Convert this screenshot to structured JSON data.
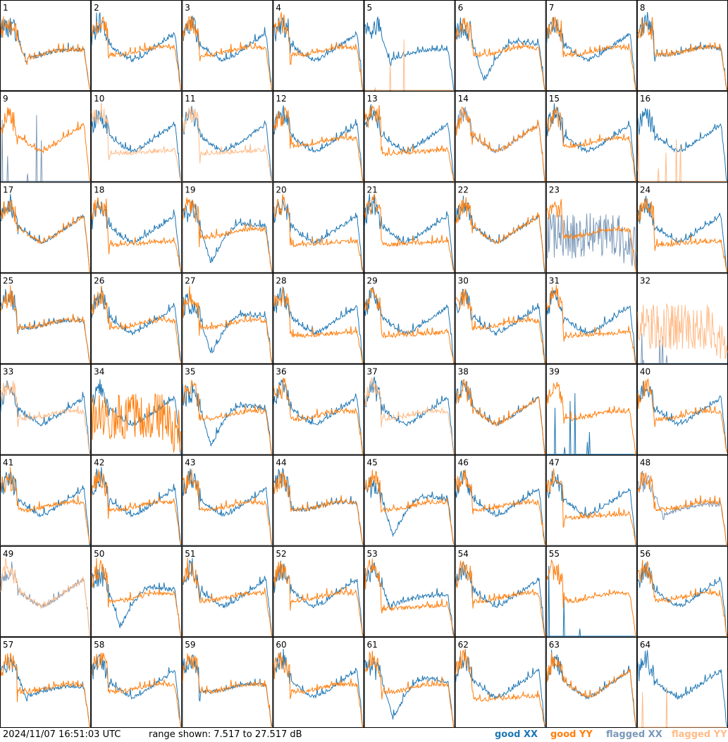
{
  "footer": {
    "timestamp": "2024/11/07 16:51:03 UTC",
    "range_text": "range shown: 7.517 to 27.517 dB",
    "legend": {
      "good_xx": "good XX",
      "good_yy": "good YY",
      "flagged_xx": "flagged XX",
      "flagged_yy": "flagged YY"
    }
  },
  "colors": {
    "good_xx": "#1f77b4",
    "good_yy": "#ff7f0e",
    "flagged_xx": "#7a98b8",
    "flagged_yy": "#ffbb88",
    "grid_line": "#000000"
  },
  "chart_data": {
    "type": "line",
    "layout": "8x8 small multiples",
    "ylim": [
      7.517,
      27.517
    ],
    "yunit": "dB",
    "series_names": [
      "good XX",
      "good YY",
      "flagged XX",
      "flagged YY"
    ],
    "panels": [
      {
        "label": "1",
        "xx": {
          "shape": "sag",
          "flag": false
        },
        "yy": {
          "shape": "sag",
          "flag": false
        }
      },
      {
        "label": "2",
        "xx": {
          "shape": "hump",
          "flag": false
        },
        "yy": {
          "shape": "flat",
          "flag": false
        }
      },
      {
        "label": "3",
        "xx": {
          "shape": "hump",
          "flag": false
        },
        "yy": {
          "shape": "flat",
          "flag": false
        }
      },
      {
        "label": "4",
        "xx": {
          "shape": "hump",
          "flag": false
        },
        "yy": {
          "shape": "flat",
          "flag": false
        }
      },
      {
        "label": "5",
        "xx": {
          "shape": "sag",
          "flag": false
        },
        "yy": {
          "shape": "spike",
          "flag": true
        }
      },
      {
        "label": "6",
        "xx": {
          "shape": "deep",
          "flag": false
        },
        "yy": {
          "shape": "flat",
          "flag": false
        }
      },
      {
        "label": "7",
        "xx": {
          "shape": "hump",
          "flag": false
        },
        "yy": {
          "shape": "flat",
          "flag": false
        }
      },
      {
        "label": "8",
        "xx": {
          "shape": "flat",
          "flag": false
        },
        "yy": {
          "shape": "flat",
          "flag": false
        }
      },
      {
        "label": "9",
        "xx": {
          "shape": "spike",
          "flag": true
        },
        "yy": {
          "shape": "hump",
          "flag": false
        }
      },
      {
        "label": "10",
        "xx": {
          "shape": "hump",
          "flag": false
        },
        "yy": {
          "shape": "low",
          "flag": true
        }
      },
      {
        "label": "11",
        "xx": {
          "shape": "hump",
          "flag": false
        },
        "yy": {
          "shape": "low",
          "flag": true
        }
      },
      {
        "label": "12",
        "xx": {
          "shape": "hump",
          "flag": false
        },
        "yy": {
          "shape": "flat",
          "flag": false
        }
      },
      {
        "label": "13",
        "xx": {
          "shape": "hump",
          "flag": false
        },
        "yy": {
          "shape": "low",
          "flag": false
        }
      },
      {
        "label": "14",
        "xx": {
          "shape": "hump",
          "flag": true
        },
        "yy": {
          "shape": "hump",
          "flag": false
        }
      },
      {
        "label": "15",
        "xx": {
          "shape": "hump",
          "flag": false
        },
        "yy": {
          "shape": "flat",
          "flag": false
        }
      },
      {
        "label": "16",
        "xx": {
          "shape": "hump",
          "flag": false
        },
        "yy": {
          "shape": "spike",
          "flag": true
        }
      },
      {
        "label": "17",
        "xx": {
          "shape": "hump",
          "flag": false
        },
        "yy": {
          "shape": "hump",
          "flag": false
        }
      },
      {
        "label": "18",
        "xx": {
          "shape": "hump",
          "flag": false
        },
        "yy": {
          "shape": "low",
          "flag": false
        }
      },
      {
        "label": "19",
        "xx": {
          "shape": "deep",
          "flag": false
        },
        "yy": {
          "shape": "flat",
          "flag": false
        }
      },
      {
        "label": "20",
        "xx": {
          "shape": "hump",
          "flag": false
        },
        "yy": {
          "shape": "low",
          "flag": false
        }
      },
      {
        "label": "21",
        "xx": {
          "shape": "hump",
          "flag": false
        },
        "yy": {
          "shape": "low",
          "flag": false
        }
      },
      {
        "label": "22",
        "xx": {
          "shape": "hump",
          "flag": false
        },
        "yy": {
          "shape": "hump",
          "flag": false
        }
      },
      {
        "label": "23",
        "xx": {
          "shape": "noise",
          "flag": true
        },
        "yy": {
          "shape": "flat",
          "flag": false
        }
      },
      {
        "label": "24",
        "xx": {
          "shape": "hump",
          "flag": false
        },
        "yy": {
          "shape": "low",
          "flag": false
        }
      },
      {
        "label": "25",
        "xx": {
          "shape": "flat",
          "flag": false
        },
        "yy": {
          "shape": "flat",
          "flag": false
        }
      },
      {
        "label": "26",
        "xx": {
          "shape": "hump",
          "flag": false
        },
        "yy": {
          "shape": "flat",
          "flag": false
        }
      },
      {
        "label": "27",
        "xx": {
          "shape": "deep",
          "flag": false
        },
        "yy": {
          "shape": "flat",
          "flag": false
        }
      },
      {
        "label": "28",
        "xx": {
          "shape": "hump",
          "flag": false
        },
        "yy": {
          "shape": "low",
          "flag": false
        }
      },
      {
        "label": "29",
        "xx": {
          "shape": "hump",
          "flag": false
        },
        "yy": {
          "shape": "low",
          "flag": false
        }
      },
      {
        "label": "30",
        "xx": {
          "shape": "hump",
          "flag": false
        },
        "yy": {
          "shape": "flat",
          "flag": false
        }
      },
      {
        "label": "31",
        "xx": {
          "shape": "hump",
          "flag": false
        },
        "yy": {
          "shape": "low",
          "flag": false
        }
      },
      {
        "label": "32",
        "xx": {
          "shape": "spike",
          "flag": true
        },
        "yy": {
          "shape": "noise",
          "flag": true
        }
      },
      {
        "label": "33",
        "xx": {
          "shape": "hump",
          "flag": false
        },
        "yy": {
          "shape": "flat",
          "flag": true
        }
      },
      {
        "label": "34",
        "xx": {
          "shape": "hump",
          "flag": false
        },
        "yy": {
          "shape": "noise",
          "flag": false
        }
      },
      {
        "label": "35",
        "xx": {
          "shape": "deep",
          "flag": false
        },
        "yy": {
          "shape": "flat",
          "flag": false
        }
      },
      {
        "label": "36",
        "xx": {
          "shape": "hump",
          "flag": false
        },
        "yy": {
          "shape": "flat",
          "flag": false
        }
      },
      {
        "label": "37",
        "xx": {
          "shape": "hump",
          "flag": false
        },
        "yy": {
          "shape": "flat",
          "flag": true
        }
      },
      {
        "label": "38",
        "xx": {
          "shape": "hump",
          "flag": false
        },
        "yy": {
          "shape": "hump",
          "flag": false
        }
      },
      {
        "label": "39",
        "xx": {
          "shape": "spike",
          "flag": false
        },
        "yy": {
          "shape": "flat",
          "flag": false
        }
      },
      {
        "label": "40",
        "xx": {
          "shape": "hump",
          "flag": false
        },
        "yy": {
          "shape": "flat",
          "flag": false
        }
      },
      {
        "label": "41",
        "xx": {
          "shape": "hump",
          "flag": false
        },
        "yy": {
          "shape": "flat",
          "flag": false
        }
      },
      {
        "label": "42",
        "xx": {
          "shape": "hump",
          "flag": false
        },
        "yy": {
          "shape": "flat",
          "flag": false
        }
      },
      {
        "label": "43",
        "xx": {
          "shape": "hump",
          "flag": false
        },
        "yy": {
          "shape": "flat",
          "flag": false
        }
      },
      {
        "label": "44",
        "xx": {
          "shape": "flat",
          "flag": false
        },
        "yy": {
          "shape": "flat",
          "flag": false
        }
      },
      {
        "label": "45",
        "xx": {
          "shape": "deep",
          "flag": false
        },
        "yy": {
          "shape": "flat",
          "flag": false
        }
      },
      {
        "label": "46",
        "xx": {
          "shape": "hump",
          "flag": false
        },
        "yy": {
          "shape": "flat",
          "flag": false
        }
      },
      {
        "label": "47",
        "xx": {
          "shape": "hump",
          "flag": false
        },
        "yy": {
          "shape": "low",
          "flag": false
        }
      },
      {
        "label": "48",
        "xx": {
          "shape": "sag",
          "flag": true
        },
        "yy": {
          "shape": "flat",
          "flag": false
        }
      },
      {
        "label": "49",
        "xx": {
          "shape": "hump",
          "flag": true
        },
        "yy": {
          "shape": "hump",
          "flag": true
        }
      },
      {
        "label": "50",
        "xx": {
          "shape": "deep",
          "flag": false
        },
        "yy": {
          "shape": "flat",
          "flag": false
        }
      },
      {
        "label": "51",
        "xx": {
          "shape": "hump",
          "flag": false
        },
        "yy": {
          "shape": "flat",
          "flag": false
        }
      },
      {
        "label": "52",
        "xx": {
          "shape": "hump",
          "flag": false
        },
        "yy": {
          "shape": "flat",
          "flag": false
        }
      },
      {
        "label": "53",
        "xx": {
          "shape": "sag",
          "flag": false
        },
        "yy": {
          "shape": "low",
          "flag": false
        }
      },
      {
        "label": "54",
        "xx": {
          "shape": "hump",
          "flag": false
        },
        "yy": {
          "shape": "flat",
          "flag": false
        }
      },
      {
        "label": "55",
        "xx": {
          "shape": "spike",
          "flag": false
        },
        "yy": {
          "shape": "flat",
          "flag": false
        }
      },
      {
        "label": "56",
        "xx": {
          "shape": "hump",
          "flag": false
        },
        "yy": {
          "shape": "flat",
          "flag": false
        }
      },
      {
        "label": "57",
        "xx": {
          "shape": "sag",
          "flag": false
        },
        "yy": {
          "shape": "flat",
          "flag": false
        }
      },
      {
        "label": "58",
        "xx": {
          "shape": "hump",
          "flag": false
        },
        "yy": {
          "shape": "flat",
          "flag": false
        }
      },
      {
        "label": "59",
        "xx": {
          "shape": "flat",
          "flag": false
        },
        "yy": {
          "shape": "flat",
          "flag": false
        }
      },
      {
        "label": "60",
        "xx": {
          "shape": "hump",
          "flag": false
        },
        "yy": {
          "shape": "flat",
          "flag": false
        }
      },
      {
        "label": "61",
        "xx": {
          "shape": "deep",
          "flag": false
        },
        "yy": {
          "shape": "flat",
          "flag": false
        }
      },
      {
        "label": "62",
        "xx": {
          "shape": "hump",
          "flag": false
        },
        "yy": {
          "shape": "low",
          "flag": false
        }
      },
      {
        "label": "63",
        "xx": {
          "shape": "hump",
          "flag": false
        },
        "yy": {
          "shape": "hump",
          "flag": false
        }
      },
      {
        "label": "64",
        "xx": {
          "shape": "hump",
          "flag": false
        },
        "yy": {
          "shape": "spike",
          "flag": true
        }
      }
    ]
  }
}
